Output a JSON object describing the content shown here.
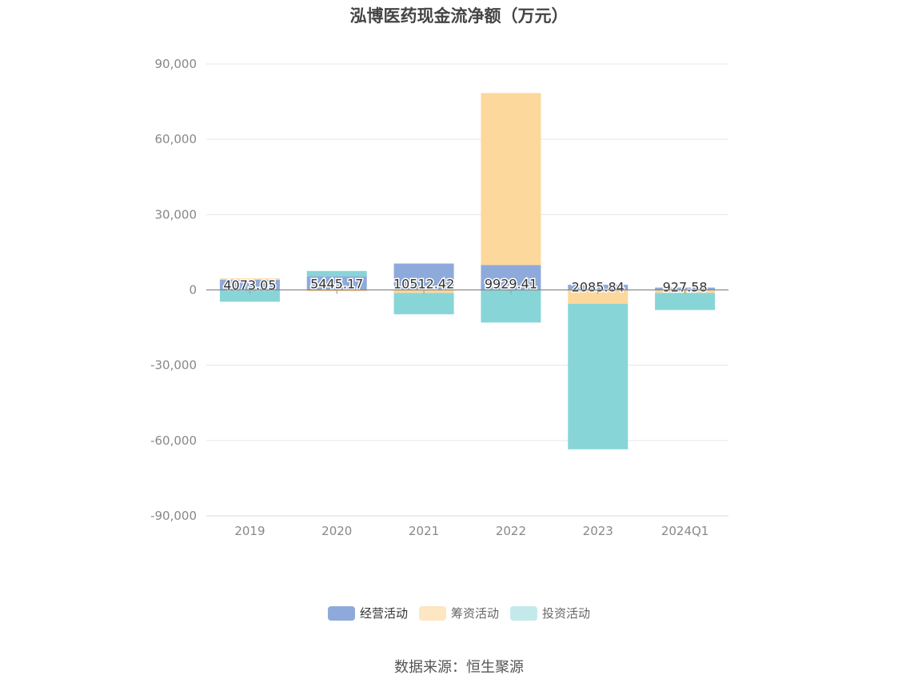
{
  "chart_data": {
    "type": "bar",
    "stacked": true,
    "title": "泓博医药现金流净额（万元）",
    "categories": [
      "2019",
      "2020",
      "2021",
      "2022",
      "2023",
      "2024Q1"
    ],
    "ylim": [
      -90000,
      90000
    ],
    "yticks": [
      90000,
      60000,
      30000,
      0,
      -30000,
      -60000,
      -90000
    ],
    "ytick_labels": [
      "90,000",
      "60,000",
      "30,000",
      "0",
      "-30,000",
      "-60,000",
      "-90,000"
    ],
    "grid": true,
    "legend_position": "bottom",
    "series": [
      {
        "name": "经营活动",
        "color": "#8eaadb",
        "values": [
          4073.05,
          5445.17,
          10512.42,
          9929.41,
          2085.84,
          927.58
        ],
        "labels": [
          "4073.05",
          "5445.17",
          "10512.42",
          "9929.41",
          "2085.84",
          "927.58"
        ]
      },
      {
        "name": "筹资活动",
        "color": "#fdd89c",
        "values": [
          500,
          -500,
          -1200,
          68500,
          -5500,
          -1200
        ]
      },
      {
        "name": "投资活动",
        "color": "#88d5d8",
        "values": [
          -4700,
          2100,
          -8500,
          -13000,
          -58000,
          -6800
        ]
      }
    ],
    "legend_colors": [
      "#8eaadb",
      "#fde6c2",
      "#c4e9eb"
    ]
  },
  "source_text": "数据来源：恒生聚源"
}
